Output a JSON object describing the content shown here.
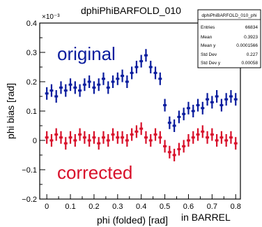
{
  "chart_data": {
    "type": "scatter",
    "title": "dphiPhiBARFOLD_010",
    "xlabel": "phi (folded) [rad]",
    "ylabel": "phi bias [rad]",
    "y_exponent": "×10⁻³",
    "xlim": [
      -0.03,
      0.82
    ],
    "ylim": [
      -0.2,
      0.4
    ],
    "x_ticks": [
      0,
      0.1,
      0.2,
      0.3,
      0.4,
      0.5,
      0.6,
      0.7,
      0.8
    ],
    "x_tick_labels": [
      "0",
      "0.1",
      "0.2",
      "0.3",
      "0.4",
      "0.5",
      "0.6",
      "0.7",
      "0.8"
    ],
    "y_ticks": [
      -0.2,
      -0.1,
      0,
      0.1,
      0.2,
      0.3,
      0.4
    ],
    "y_tick_labels": [
      "−0.2",
      "−0.1",
      "0",
      "0.1",
      "0.2",
      "0.3",
      "0.4"
    ],
    "annotations": {
      "original": "original",
      "corrected": "corrected",
      "region": "in BARREL"
    },
    "colors": {
      "original": "#0b1d9e",
      "corrected": "#d8102a",
      "axis": "#000000"
    },
    "stats_box": {
      "title": "dphiPhiBARFOLD_010_phi",
      "rows": [
        {
          "label": "Entries",
          "value": "66834"
        },
        {
          "label": "Mean",
          "value": "0.3923"
        },
        {
          "label": "Mean y",
          "value": "0.0001566"
        },
        {
          "label": "Std Dev",
          "value": "0.227"
        },
        {
          "label": "Std Dev y",
          "value": "0.00058"
        }
      ]
    },
    "series": [
      {
        "x": [
          0.0,
          0.02,
          0.04,
          0.06,
          0.08,
          0.1,
          0.12,
          0.14,
          0.16,
          0.18,
          0.2,
          0.22,
          0.24,
          0.26,
          0.28,
          0.3,
          0.32,
          0.34,
          0.36,
          0.38,
          0.4,
          0.42,
          0.44,
          0.46,
          0.48,
          0.5,
          0.52,
          0.54,
          0.56,
          0.58,
          0.6,
          0.62,
          0.64,
          0.66,
          0.68,
          0.7,
          0.72,
          0.74,
          0.76,
          0.78,
          0.8
        ],
        "y": [
          0.16,
          0.17,
          0.15,
          0.18,
          0.17,
          0.19,
          0.18,
          0.17,
          0.19,
          0.2,
          0.18,
          0.19,
          0.21,
          0.18,
          0.2,
          0.21,
          0.22,
          0.2,
          0.23,
          0.25,
          0.27,
          0.29,
          0.25,
          0.23,
          0.21,
          0.12,
          0.06,
          0.05,
          0.08,
          0.09,
          0.11,
          0.1,
          0.12,
          0.11,
          0.14,
          0.13,
          0.15,
          0.12,
          0.14,
          0.15,
          0.14
        ]
      },
      {
        "x": [
          0.0,
          0.02,
          0.04,
          0.06,
          0.08,
          0.1,
          0.12,
          0.14,
          0.16,
          0.18,
          0.2,
          0.22,
          0.24,
          0.26,
          0.28,
          0.3,
          0.32,
          0.34,
          0.36,
          0.38,
          0.4,
          0.42,
          0.44,
          0.46,
          0.48,
          0.5,
          0.52,
          0.54,
          0.56,
          0.58,
          0.6,
          0.62,
          0.64,
          0.66,
          0.68,
          0.7,
          0.72,
          0.74,
          0.76,
          0.78,
          0.8
        ],
        "y": [
          0.01,
          0.0,
          0.02,
          0.01,
          -0.01,
          0.01,
          0.0,
          0.02,
          0.01,
          0.0,
          0.01,
          -0.01,
          0.01,
          0.0,
          0.02,
          0.01,
          0.01,
          0.0,
          0.02,
          0.03,
          0.04,
          0.01,
          0.0,
          0.02,
          0.01,
          -0.02,
          -0.04,
          -0.05,
          -0.03,
          -0.02,
          0.0,
          0.01,
          0.02,
          0.03,
          0.01,
          0.02,
          0.0,
          0.01,
          0.0,
          0.01,
          -0.01
        ]
      }
    ]
  }
}
